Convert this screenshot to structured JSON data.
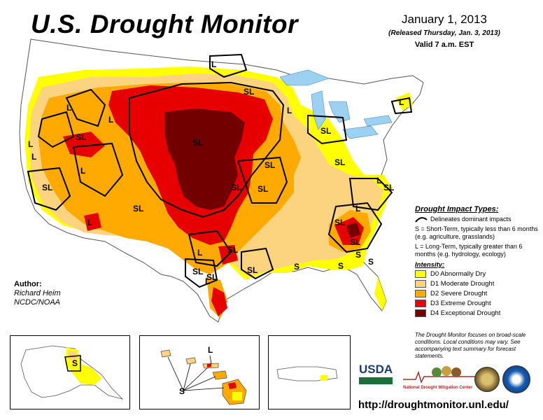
{
  "header": {
    "title": "U.S. Drought Monitor",
    "date": "January 1, 2013",
    "released": "(Released Thursday, Jan. 3, 2013)",
    "valid": "Valid 7 a.m. EST"
  },
  "map": {
    "impact_labels": [
      "SL",
      "L",
      "L",
      "SL",
      "L",
      "L",
      "SL",
      "SL",
      "L",
      "SL",
      "SL",
      "SL",
      "SL",
      "SL",
      "L",
      "L",
      "SL",
      "L",
      "L",
      "SL",
      "SL",
      "SL",
      "SL",
      "L",
      "SL",
      "S",
      "S",
      "L",
      "S",
      "L",
      "SL",
      "L",
      "SL",
      "S"
    ]
  },
  "author": {
    "heading": "Author:",
    "name": "Richard Heim",
    "org": "NCDC/NOAA"
  },
  "legend": {
    "impact_heading": "Drought Impact Types:",
    "dominant": "Delineates dominant impacts",
    "short_term": "S = Short-Term, typically less than 6 months (e.g. agriculture, grasslands)",
    "long_term": "L = Long-Term, typically greater than 6 months (e.g. hydrology, ecology)",
    "intensity_heading": "Intensity:",
    "categories": [
      {
        "label": "D0 Abnormally Dry",
        "color": "#ffff00"
      },
      {
        "label": "D1 Moderate Drought",
        "color": "#fcd37f"
      },
      {
        "label": "D2 Severe Drought",
        "color": "#ffaa00"
      },
      {
        "label": "D3 Extreme Drought",
        "color": "#e60000"
      },
      {
        "label": "D4 Exceptional Drought",
        "color": "#730000"
      }
    ]
  },
  "note": "The Drought Monitor focuses on broad-scale conditions. Local conditions may vary. See accompanying text summary for forecast statements.",
  "insets": {
    "alaska_label": "S",
    "hawaii_label_top": "L",
    "hawaii_label_bottom": "S"
  },
  "logos": {
    "usda": "USDA",
    "ndmc": "National Drought Mitigation Center"
  },
  "url": "http://droughtmonitor.unl.edu/"
}
